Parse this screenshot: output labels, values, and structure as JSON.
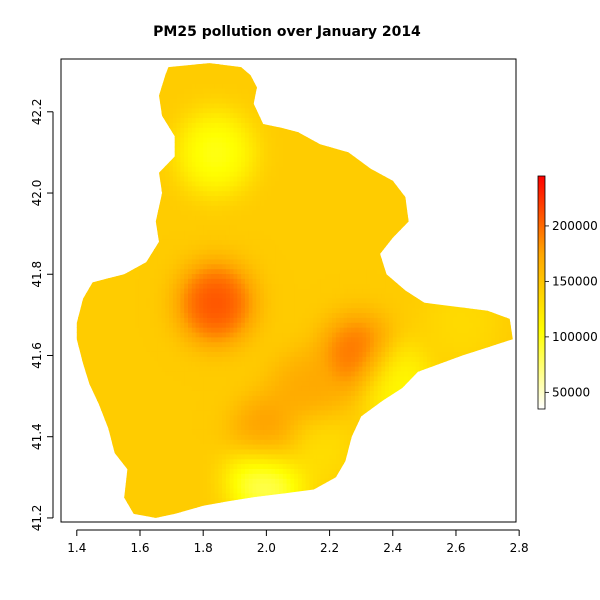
{
  "chart_data": {
    "type": "heatmap",
    "title": "PM25 pollution over January 2014",
    "xlabel": "",
    "ylabel": "",
    "xlim": [
      1.35,
      2.79
    ],
    "ylim": [
      41.19,
      42.33
    ],
    "x_ticks": [
      1.4,
      1.6,
      1.8,
      2.0,
      2.2,
      2.4,
      2.6,
      2.8
    ],
    "x_tick_labels": [
      "1.4",
      "1.6",
      "1.8",
      "2.0",
      "2.2",
      "2.4",
      "2.6",
      "2.8"
    ],
    "y_ticks": [
      41.2,
      41.4,
      41.6,
      41.8,
      42.0,
      42.2
    ],
    "y_tick_labels": [
      "41.2",
      "41.4",
      "41.6",
      "41.8",
      "42.0",
      "42.2"
    ],
    "colorbar": {
      "min": 35000,
      "max": 245000,
      "ticks": [
        50000,
        100000,
        150000,
        200000
      ],
      "tick_labels": [
        "50000",
        "100000",
        "150000",
        "200000"
      ],
      "colors": [
        "#ffffff",
        "#ffff00",
        "#ffa500",
        "#ff0000"
      ]
    },
    "base_value": 145000,
    "hotspots": [
      {
        "x": 1.84,
        "y": 41.73,
        "value": 230000
      },
      {
        "x": 2.29,
        "y": 41.6,
        "value": 215000
      },
      {
        "x": 1.84,
        "y": 42.1,
        "value": 85000
      },
      {
        "x": 2.0,
        "y": 41.3,
        "value": 55000
      },
      {
        "x": 2.4,
        "y": 41.54,
        "value": 95000
      },
      {
        "x": 2.01,
        "y": 41.4,
        "value": 195000
      },
      {
        "x": 2.13,
        "y": 41.51,
        "value": 180000
      },
      {
        "x": 2.15,
        "y": 41.38,
        "value": 125000
      },
      {
        "x": 2.62,
        "y": 41.68,
        "value": 130000
      }
    ],
    "region_outline": [
      [
        1.69,
        42.31
      ],
      [
        1.82,
        42.32
      ],
      [
        1.92,
        42.31
      ],
      [
        1.95,
        42.29
      ],
      [
        1.97,
        42.26
      ],
      [
        1.96,
        42.22
      ],
      [
        1.99,
        42.17
      ],
      [
        2.05,
        42.16
      ],
      [
        2.1,
        42.15
      ],
      [
        2.17,
        42.12
      ],
      [
        2.26,
        42.1
      ],
      [
        2.33,
        42.06
      ],
      [
        2.4,
        42.03
      ],
      [
        2.44,
        41.99
      ],
      [
        2.45,
        41.93
      ],
      [
        2.4,
        41.89
      ],
      [
        2.36,
        41.85
      ],
      [
        2.38,
        41.8
      ],
      [
        2.44,
        41.76
      ],
      [
        2.5,
        41.73
      ],
      [
        2.6,
        41.72
      ],
      [
        2.7,
        41.71
      ],
      [
        2.77,
        41.69
      ],
      [
        2.78,
        41.64
      ],
      [
        2.7,
        41.62
      ],
      [
        2.62,
        41.6
      ],
      [
        2.55,
        41.58
      ],
      [
        2.48,
        41.56
      ],
      [
        2.43,
        41.52
      ],
      [
        2.37,
        41.49
      ],
      [
        2.3,
        41.45
      ],
      [
        2.27,
        41.4
      ],
      [
        2.25,
        41.34
      ],
      [
        2.22,
        41.3
      ],
      [
        2.15,
        41.27
      ],
      [
        2.05,
        41.26
      ],
      [
        1.95,
        41.25
      ],
      [
        1.87,
        41.24
      ],
      [
        1.8,
        41.23
      ],
      [
        1.71,
        41.21
      ],
      [
        1.65,
        41.2
      ],
      [
        1.58,
        41.21
      ],
      [
        1.55,
        41.25
      ],
      [
        1.56,
        41.32
      ],
      [
        1.52,
        41.36
      ],
      [
        1.5,
        41.42
      ],
      [
        1.47,
        41.48
      ],
      [
        1.44,
        41.53
      ],
      [
        1.42,
        41.58
      ],
      [
        1.4,
        41.64
      ],
      [
        1.4,
        41.68
      ],
      [
        1.42,
        41.74
      ],
      [
        1.45,
        41.78
      ],
      [
        1.5,
        41.79
      ],
      [
        1.55,
        41.8
      ],
      [
        1.62,
        41.83
      ],
      [
        1.66,
        41.88
      ],
      [
        1.65,
        41.93
      ],
      [
        1.67,
        42.0
      ],
      [
        1.66,
        42.05
      ],
      [
        1.71,
        42.09
      ],
      [
        1.71,
        42.14
      ],
      [
        1.67,
        42.19
      ],
      [
        1.66,
        42.24
      ],
      [
        1.68,
        42.29
      ]
    ]
  }
}
